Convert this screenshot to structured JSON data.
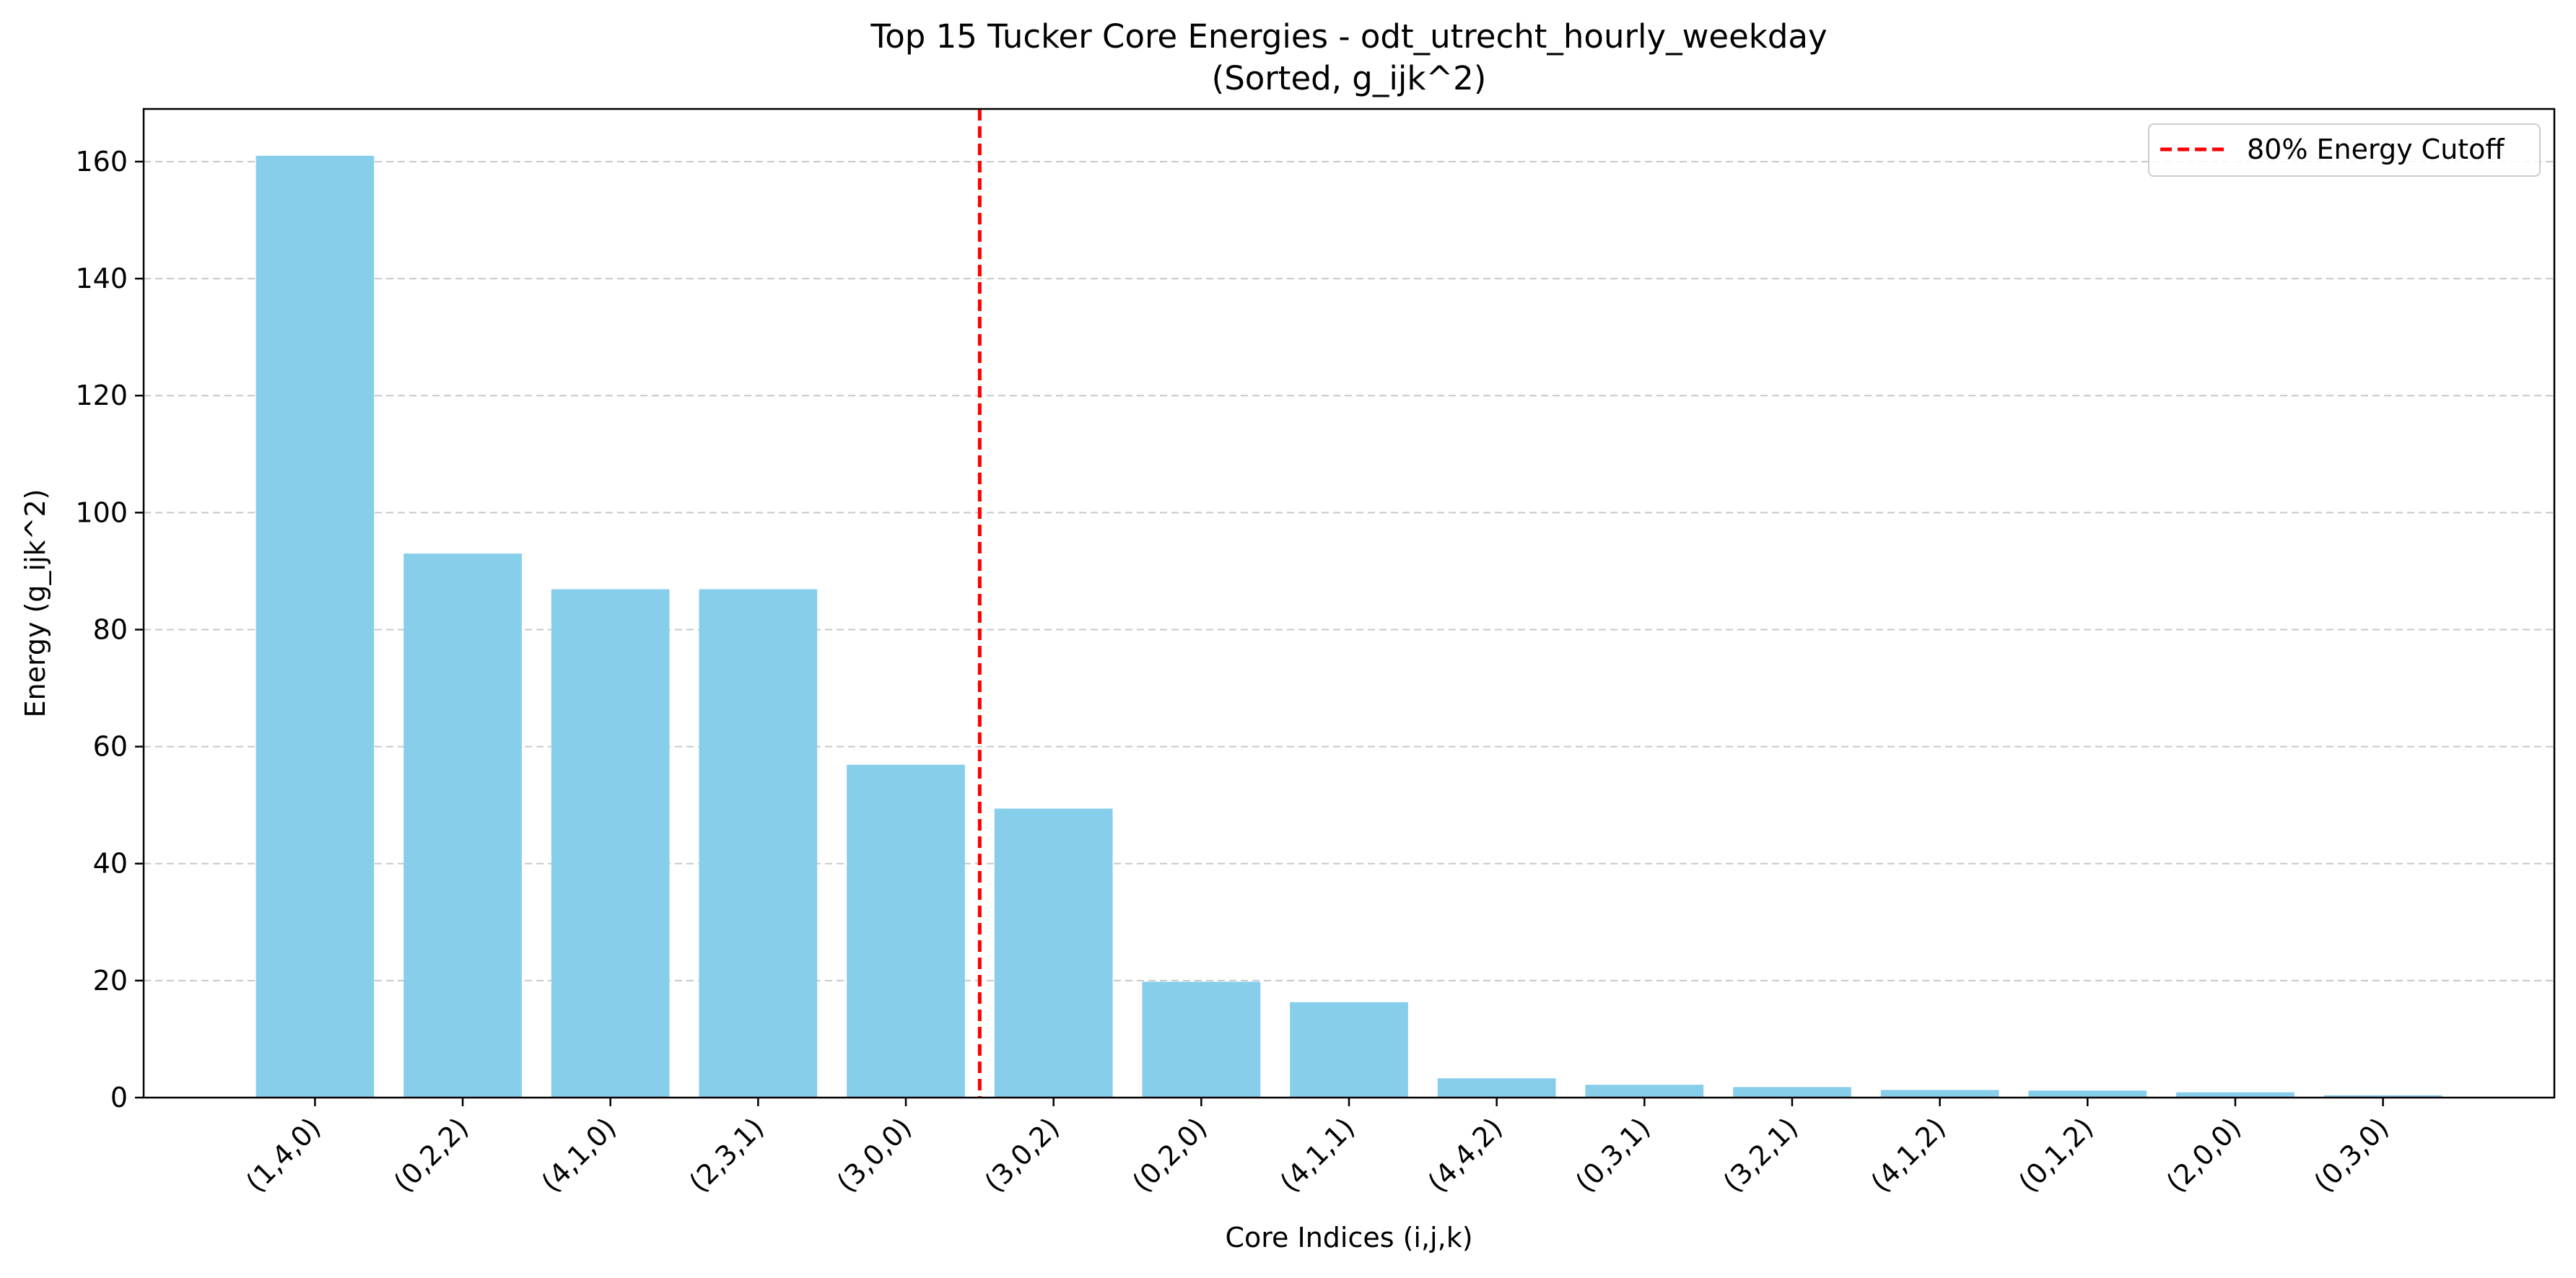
{
  "chart_data": {
    "type": "bar",
    "title": "Top 15 Tucker Core Energies - odt_utrecht_hourly_weekday",
    "subtitle": "(Sorted, g_ijk^2)",
    "xlabel": "Core Indices (i,j,k)",
    "ylabel": "Energy (g_ijk^2)",
    "categories": [
      "(1,4,0)",
      "(0,2,2)",
      "(4,1,0)",
      "(2,3,1)",
      "(3,0,0)",
      "(3,0,2)",
      "(0,2,0)",
      "(4,1,1)",
      "(4,4,2)",
      "(0,3,1)",
      "(3,2,1)",
      "(4,1,2)",
      "(0,1,2)",
      "(2,0,0)",
      "(0,3,0)"
    ],
    "values": [
      161.0,
      93.0,
      86.9,
      86.9,
      56.9,
      49.4,
      19.8,
      16.3,
      3.3,
      2.2,
      1.8,
      1.3,
      1.2,
      0.9,
      0.4
    ],
    "yticks": [
      0,
      20,
      40,
      60,
      80,
      100,
      120,
      140,
      160
    ],
    "ylim": [
      0,
      169
    ],
    "xlim": [
      -1.16,
      15.16
    ],
    "bar_color": "#87CEEB",
    "grid": "y dashed",
    "cutoff": {
      "label": "80% Energy Cutoff",
      "x": 4.5,
      "color": "#FF0000"
    },
    "legend_position": "upper-right"
  }
}
